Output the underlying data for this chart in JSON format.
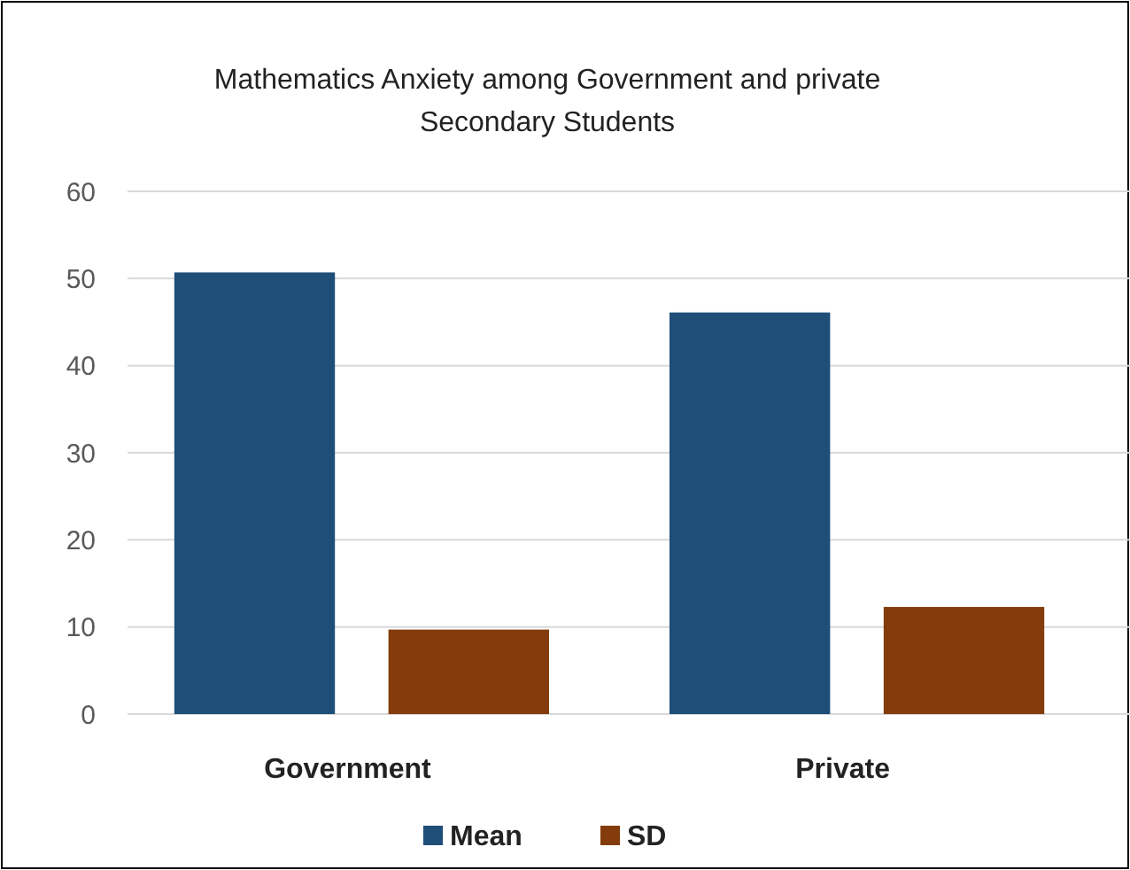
{
  "chart_data": {
    "type": "bar",
    "title": "Mathematics Anxiety among Government and private Secondary Students",
    "categories": [
      "Government",
      "Private"
    ],
    "series": [
      {
        "name": "Mean",
        "color": "#1f4e79",
        "values": [
          50.7,
          46.1
        ]
      },
      {
        "name": "SD",
        "color": "#843c0c",
        "values": [
          9.7,
          12.3
        ]
      }
    ],
    "ylim": [
      0,
      60
    ],
    "yticks": [
      0,
      10,
      20,
      30,
      40,
      50,
      60
    ],
    "grid": "y",
    "legend": "bottom"
  }
}
